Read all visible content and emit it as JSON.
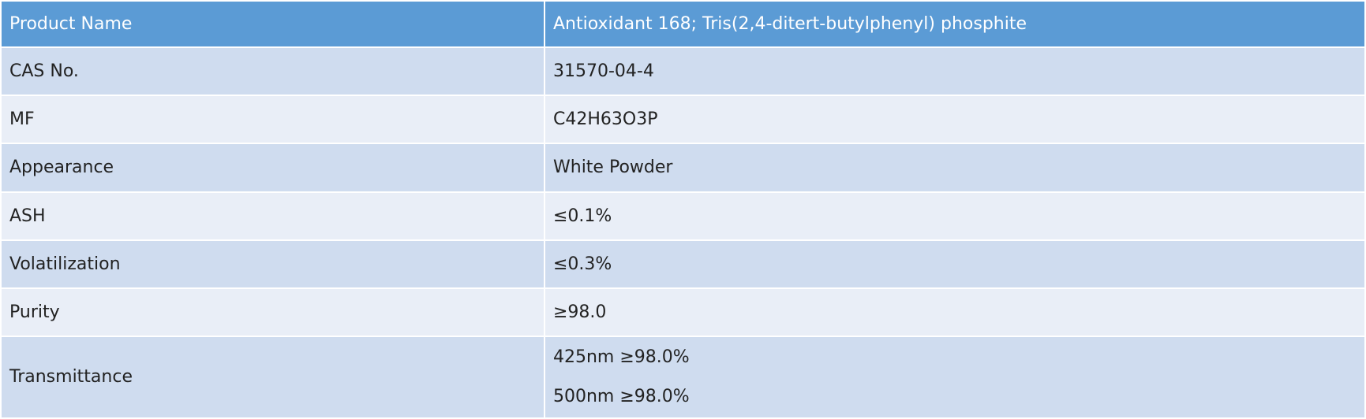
{
  "table": {
    "header": [
      "Product Name",
      "Antioxidant 168; Tris(2,4-ditert-butylphenyl) phosphite"
    ],
    "rows": [
      [
        "CAS No.",
        "31570-04-4"
      ],
      [
        "MF",
        "C42H63O3P"
      ],
      [
        "Appearance",
        "White Powder"
      ],
      [
        "ASH",
        "≤0.1%"
      ],
      [
        "Volatilization",
        "≤0.3%"
      ],
      [
        "Purity",
        "≥98.0"
      ],
      [
        "Transmittance",
        [
          "425nm ≥98.0%",
          "500nm ≥98.0%"
        ]
      ]
    ]
  }
}
